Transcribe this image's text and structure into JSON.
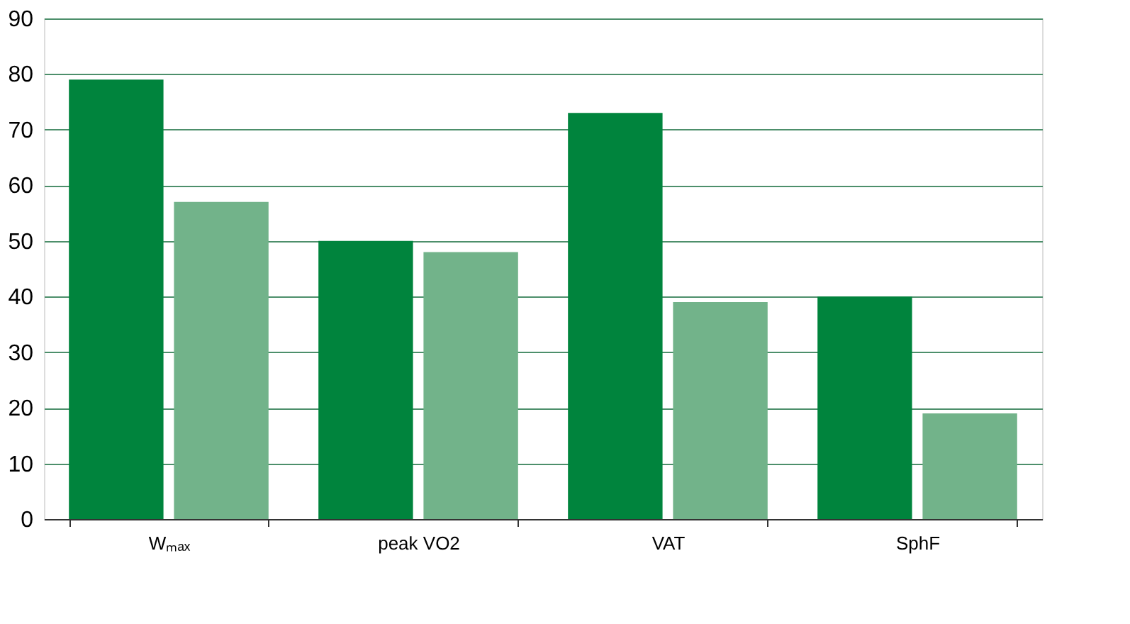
{
  "chart_data": {
    "type": "bar",
    "categories": [
      "Wₘₐₓ",
      "peak VO2",
      "VAT",
      "SphF"
    ],
    "series": [
      {
        "color": "#00843d",
        "values": [
          79,
          50,
          73,
          40
        ]
      },
      {
        "color": "#72b38a",
        "values": [
          57,
          48,
          39,
          19
        ]
      }
    ],
    "ylim": [
      0,
      90
    ],
    "yticks": [
      0,
      10,
      20,
      30,
      40,
      50,
      60,
      70,
      80,
      90
    ],
    "grid": "y",
    "legend": false
  }
}
